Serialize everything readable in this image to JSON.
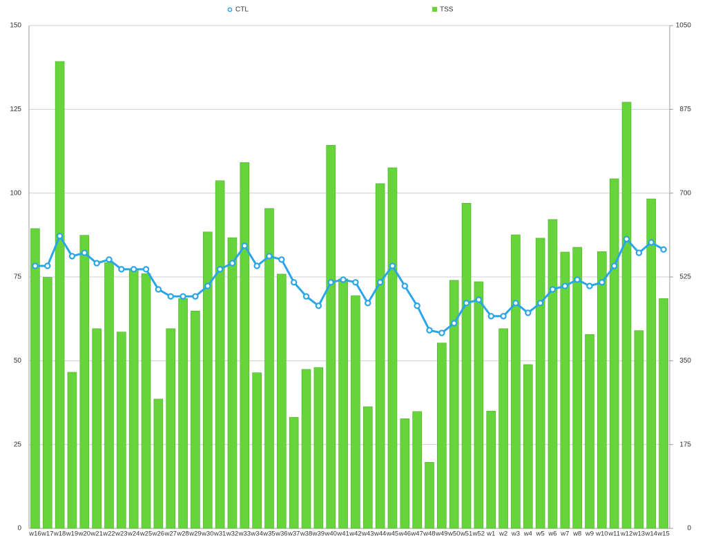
{
  "chart_data": {
    "type": "combo",
    "categories": [
      "w16",
      "w17",
      "w18",
      "w19",
      "w20",
      "w21",
      "w22",
      "w23",
      "w24",
      "w25",
      "w26",
      "w27",
      "w28",
      "w29",
      "w30",
      "w31",
      "w32",
      "w33",
      "w34",
      "w35",
      "w36",
      "w37",
      "w38",
      "w39",
      "w40",
      "w41",
      "w42",
      "w43",
      "w44",
      "w45",
      "w46",
      "w47",
      "w48",
      "w49",
      "w50",
      "w51",
      "w52",
      "w1",
      "w2",
      "w3",
      "w4",
      "w5",
      "w6",
      "w7",
      "w8",
      "w9",
      "w10",
      "w11",
      "w12",
      "w13",
      "w14",
      "w15"
    ],
    "series": [
      {
        "name": "CTL",
        "type": "line",
        "color": "#2aa5e8",
        "values": [
          78.3,
          78.3,
          87.2,
          81.2,
          82.2,
          79.1,
          80.2,
          77.3,
          77.3,
          77.3,
          71.3,
          69.2,
          69.2,
          69.2,
          72.3,
          77.3,
          79.1,
          84.3,
          78.3,
          81.2,
          80.2,
          73.4,
          69.2,
          66.4,
          73.4,
          74.2,
          73.4,
          67.2,
          73.4,
          78.3,
          72.3,
          66.4,
          59.1,
          58.3,
          61.2,
          67.2,
          68.2,
          63.3,
          63.3,
          67.2,
          64.3,
          67.2,
          71.3,
          72.3,
          74.2,
          72.3,
          73.4,
          78.3,
          86.3,
          82.2,
          85.3,
          83.2
        ]
      },
      {
        "name": "TSS",
        "type": "bar",
        "axis": "y2",
        "color": "#66d43a",
        "values": [
          626,
          524,
          975,
          326,
          612,
          417,
          555,
          410,
          541,
          532,
          270,
          417,
          480,
          454,
          619,
          726,
          607,
          764,
          325,
          668,
          531,
          232,
          332,
          336,
          800,
          521,
          486,
          254,
          720,
          753,
          229,
          244,
          138,
          387,
          518,
          679,
          515,
          245,
          417,
          613,
          342,
          606,
          645,
          577,
          587,
          405,
          578,
          730,
          890,
          413,
          688,
          480
        ]
      }
    ],
    "ylim": [
      0,
      150
    ],
    "yticks": [
      0,
      25,
      50,
      75,
      100,
      125,
      150
    ],
    "y2lim": [
      0,
      1050
    ],
    "y2ticks": [
      0,
      175,
      350,
      525,
      700,
      875,
      1050
    ],
    "grid": true
  }
}
